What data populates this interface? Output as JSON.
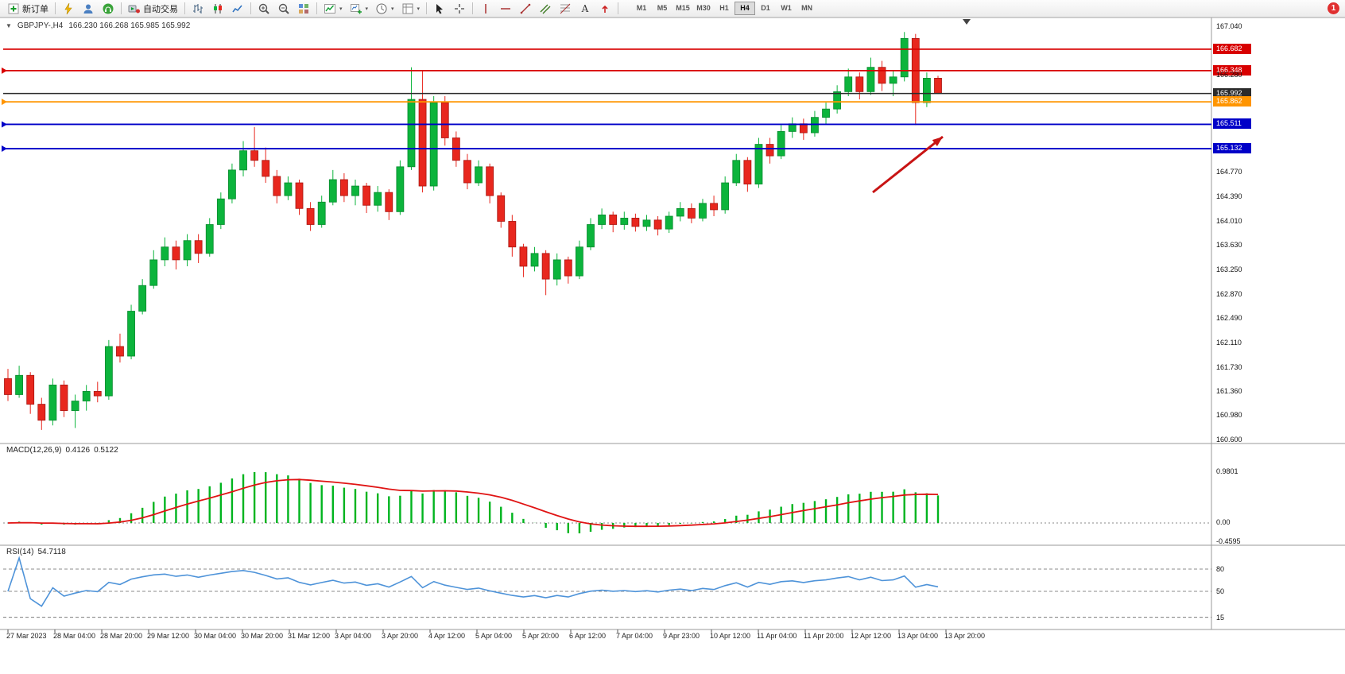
{
  "toolbar": {
    "notification": "1",
    "groups": [
      {
        "type": "button",
        "name": "new-order",
        "icon": "new-order",
        "label": "新订单"
      },
      {
        "type": "icons",
        "items": [
          "lightning",
          "user",
          "headset"
        ]
      },
      {
        "type": "button",
        "name": "autotrading",
        "icon": "autotrading",
        "label": "自动交易"
      },
      {
        "type": "icons",
        "items": [
          "bar-chart",
          "candlestick",
          "line-chart"
        ]
      },
      {
        "type": "icons",
        "items": [
          "zoom-in",
          "zoom-out",
          "tile-windows"
        ]
      },
      {
        "type": "icons-dd",
        "items": [
          "indicators",
          "new-chart",
          "periods",
          "templates"
        ]
      },
      {
        "type": "icons",
        "items": [
          "cursor",
          "crosshair"
        ]
      },
      {
        "type": "icons",
        "items": [
          "vertical-line",
          "horizontal-line",
          "trendline",
          "channel",
          "fibonacci",
          "text",
          "arrows"
        ]
      },
      {
        "type": "timeframes",
        "items": [
          "M1",
          "M5",
          "M15",
          "M30",
          "H1",
          "H4",
          "D1",
          "W1",
          "MN"
        ],
        "active": "H4"
      }
    ]
  },
  "chart": {
    "symbol_period": "GBPJPY-,H4",
    "ohlc_text": "166.230 166.268 165.985 165.992"
  },
  "chart_data": {
    "type": "candlestick",
    "symbol": "GBPJPY-",
    "timeframe": "H4",
    "current_ohlc": {
      "open": "166.230",
      "high": "166.268",
      "low": "165.985",
      "close": "165.992"
    },
    "price_axis": {
      "min": 160.6,
      "max": 167.04,
      "tick_labels": [
        "167.040",
        "166.280",
        "164.770",
        "164.390",
        "164.010",
        "163.630",
        "163.250",
        "162.870",
        "162.490",
        "162.110",
        "161.730",
        "161.360",
        "160.980",
        "160.600"
      ]
    },
    "hlines": [
      {
        "price": 166.682,
        "label": "166.682",
        "color": "#d80000",
        "left_marker": false
      },
      {
        "price": 166.348,
        "label": "166.348",
        "color": "#d80000",
        "left_marker": true
      },
      {
        "price": 165.992,
        "label": "165.992",
        "color": "#2b2b2b",
        "left_marker": false
      },
      {
        "price": 165.862,
        "label": "165.862",
        "color": "#ff9500",
        "left_marker": true
      },
      {
        "price": 165.511,
        "label": "165.511",
        "color": "#0000c8",
        "left_marker": true
      },
      {
        "price": 165.132,
        "label": "165.132",
        "color": "#0000c8",
        "left_marker": true
      }
    ],
    "candles_ohlc": [
      [
        161.55,
        161.7,
        161.2,
        161.3
      ],
      [
        161.3,
        161.75,
        161.25,
        161.6
      ],
      [
        161.6,
        161.65,
        161.0,
        161.15
      ],
      [
        161.15,
        161.25,
        160.75,
        160.9
      ],
      [
        160.9,
        161.55,
        160.82,
        161.45
      ],
      [
        161.45,
        161.52,
        160.95,
        161.05
      ],
      [
        161.05,
        161.3,
        160.78,
        161.2
      ],
      [
        161.2,
        161.45,
        161.05,
        161.35
      ],
      [
        161.35,
        161.5,
        161.18,
        161.28
      ],
      [
        161.28,
        162.15,
        161.22,
        162.05
      ],
      [
        162.05,
        162.25,
        161.8,
        161.9
      ],
      [
        161.9,
        162.7,
        161.85,
        162.6
      ],
      [
        162.6,
        163.1,
        162.55,
        163.0
      ],
      [
        163.0,
        163.55,
        162.95,
        163.4
      ],
      [
        163.4,
        163.75,
        163.3,
        163.6
      ],
      [
        163.6,
        163.7,
        163.25,
        163.4
      ],
      [
        163.4,
        163.8,
        163.3,
        163.7
      ],
      [
        163.7,
        163.8,
        163.35,
        163.5
      ],
      [
        163.5,
        164.05,
        163.45,
        163.95
      ],
      [
        163.95,
        164.45,
        163.88,
        164.35
      ],
      [
        164.35,
        164.9,
        164.28,
        164.8
      ],
      [
        164.8,
        165.25,
        164.7,
        165.1
      ],
      [
        165.1,
        165.47,
        164.85,
        164.95
      ],
      [
        164.95,
        165.15,
        164.6,
        164.7
      ],
      [
        164.7,
        164.8,
        164.28,
        164.4
      ],
      [
        164.4,
        164.7,
        164.33,
        164.6
      ],
      [
        164.6,
        164.65,
        164.1,
        164.2
      ],
      [
        164.2,
        164.3,
        163.85,
        163.95
      ],
      [
        163.95,
        164.4,
        163.9,
        164.3
      ],
      [
        164.3,
        164.8,
        164.25,
        164.65
      ],
      [
        164.65,
        164.75,
        164.3,
        164.4
      ],
      [
        164.4,
        164.65,
        164.25,
        164.55
      ],
      [
        164.55,
        164.6,
        164.13,
        164.25
      ],
      [
        164.25,
        164.55,
        164.15,
        164.45
      ],
      [
        164.45,
        164.5,
        164.02,
        164.15
      ],
      [
        164.15,
        164.95,
        164.1,
        164.85
      ],
      [
        164.85,
        166.4,
        164.8,
        165.9
      ],
      [
        165.9,
        166.35,
        164.45,
        164.55
      ],
      [
        164.55,
        165.95,
        164.48,
        165.85
      ],
      [
        165.85,
        165.95,
        165.18,
        165.3
      ],
      [
        165.3,
        165.4,
        164.85,
        164.95
      ],
      [
        164.95,
        165.05,
        164.5,
        164.6
      ],
      [
        164.6,
        164.95,
        164.55,
        164.85
      ],
      [
        164.85,
        164.9,
        164.28,
        164.4
      ],
      [
        164.4,
        164.45,
        163.9,
        164.0
      ],
      [
        164.0,
        164.1,
        163.45,
        163.6
      ],
      [
        163.6,
        163.65,
        163.13,
        163.3
      ],
      [
        163.3,
        163.6,
        163.22,
        163.5
      ],
      [
        163.5,
        163.55,
        162.85,
        163.1
      ],
      [
        163.1,
        163.5,
        163.0,
        163.4
      ],
      [
        163.4,
        163.45,
        163.03,
        163.15
      ],
      [
        163.15,
        163.7,
        163.1,
        163.6
      ],
      [
        163.6,
        164.05,
        163.55,
        163.95
      ],
      [
        163.95,
        164.2,
        163.88,
        164.1
      ],
      [
        164.1,
        164.15,
        163.83,
        163.95
      ],
      [
        163.95,
        164.15,
        163.87,
        164.05
      ],
      [
        164.05,
        164.12,
        163.84,
        163.92
      ],
      [
        163.92,
        164.1,
        163.85,
        164.02
      ],
      [
        164.02,
        164.08,
        163.78,
        163.88
      ],
      [
        163.88,
        164.15,
        163.82,
        164.08
      ],
      [
        164.08,
        164.3,
        164.0,
        164.2
      ],
      [
        164.2,
        164.28,
        163.97,
        164.05
      ],
      [
        164.05,
        164.35,
        164.0,
        164.28
      ],
      [
        164.28,
        164.4,
        164.08,
        164.18
      ],
      [
        164.18,
        164.7,
        164.12,
        164.6
      ],
      [
        164.6,
        165.05,
        164.55,
        164.95
      ],
      [
        164.95,
        165.0,
        164.46,
        164.58
      ],
      [
        164.58,
        165.3,
        164.52,
        165.2
      ],
      [
        165.2,
        165.3,
        164.9,
        165.02
      ],
      [
        165.02,
        165.5,
        164.97,
        165.4
      ],
      [
        165.4,
        165.62,
        165.3,
        165.52
      ],
      [
        165.52,
        165.6,
        165.27,
        165.38
      ],
      [
        165.38,
        165.72,
        165.32,
        165.62
      ],
      [
        165.62,
        165.85,
        165.52,
        165.75
      ],
      [
        165.75,
        166.12,
        165.68,
        166.02
      ],
      [
        166.02,
        166.38,
        165.95,
        166.25
      ],
      [
        166.25,
        166.32,
        165.9,
        166.02
      ],
      [
        166.02,
        166.55,
        165.97,
        166.4
      ],
      [
        166.4,
        166.5,
        166.03,
        166.15
      ],
      [
        166.15,
        166.35,
        165.95,
        166.25
      ],
      [
        166.25,
        166.95,
        166.18,
        166.85
      ],
      [
        166.85,
        166.92,
        165.5,
        165.85
      ],
      [
        165.85,
        166.32,
        165.78,
        166.23
      ],
      [
        166.23,
        166.268,
        165.985,
        165.992
      ]
    ],
    "time_labels": [
      "27 Mar 2023",
      "28 Mar 04:00",
      "28 Mar 20:00",
      "29 Mar 12:00",
      "30 Mar 04:00",
      "30 Mar 20:00",
      "31 Mar 12:00",
      "3 Apr 04:00",
      "3 Apr 20:00",
      "4 Apr 12:00",
      "5 Apr 04:00",
      "5 Apr 20:00",
      "6 Apr 12:00",
      "7 Apr 04:00",
      "9 Apr 23:00",
      "10 Apr 12:00",
      "11 Apr 04:00",
      "11 Apr 20:00",
      "12 Apr 12:00",
      "13 Apr 04:00",
      "13 Apr 20:00"
    ],
    "macd": {
      "name": "MACD(12,26,9)",
      "value_macd": "0.4126",
      "value_signal": "0.5122",
      "scale": [
        "0.9801",
        "0.00",
        "-0.4595"
      ],
      "histogram_color": "#00b41e",
      "signal_color": "#e01414"
    },
    "rsi": {
      "name": "RSI(14)",
      "value": "54.7118",
      "levels": [
        "80",
        "50",
        "15"
      ],
      "line_color": "#4e93d9"
    },
    "colors": {
      "bull": "#0cb43c",
      "bear": "#e8271e"
    },
    "arrow_annotation": {
      "color": "#c81414",
      "from": [
        1098,
        242
      ],
      "to": [
        1186,
        172
      ]
    }
  }
}
